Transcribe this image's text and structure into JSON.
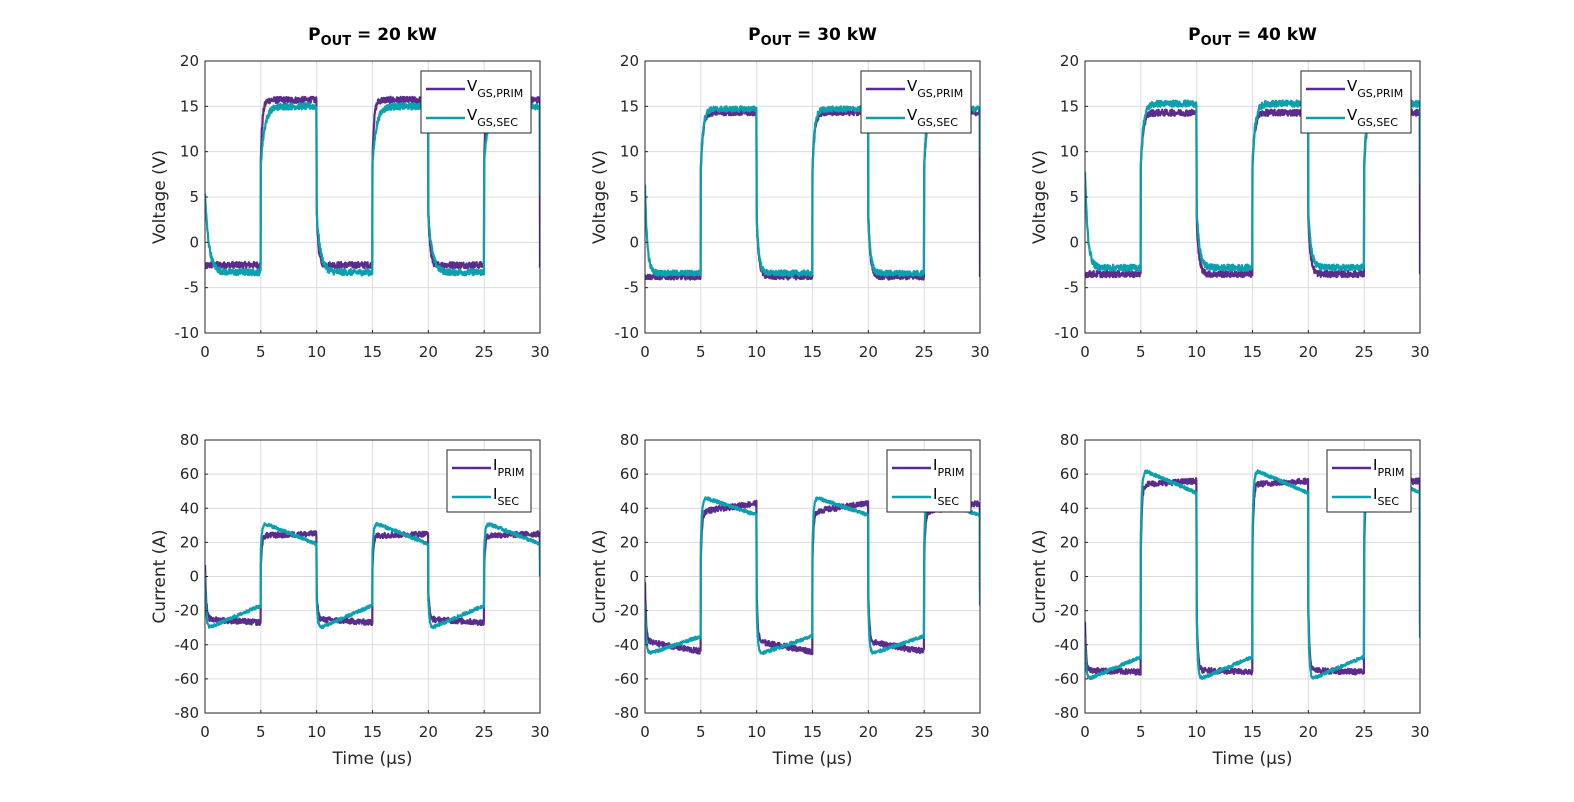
{
  "figure": {
    "colors": {
      "prim": "#5b2c8c",
      "sec": "#0aa0ad",
      "grid": "#dcdcdc",
      "axis": "#262626"
    }
  },
  "chart_data": [
    {
      "type": "line",
      "panel": "voltage-20kW",
      "title": {
        "main": "P",
        "sub": "OUT",
        "rest": " = 20 kW"
      },
      "xlabel": "",
      "ylabel": "Voltage (V)",
      "xlim": [
        0,
        30
      ],
      "ylim": [
        -10,
        20
      ],
      "xticks": [
        "0",
        "5",
        "10",
        "15",
        "20",
        "25",
        "30"
      ],
      "yticks": [
        "-10",
        "-5",
        "0",
        "5",
        "10",
        "15",
        "20"
      ],
      "grid": true,
      "legend_position": "top-right",
      "period_us": 10,
      "switch_times_us": [
        5,
        10,
        15,
        20,
        25
      ],
      "series": [
        {
          "name": "V",
          "name_sub": "GS,PRIM",
          "color_key": "prim",
          "high": [
            15.7,
            15.7
          ],
          "low": [
            -2.5,
            -2.5
          ],
          "start": -2.8,
          "end": -2.8,
          "noise": 0.35,
          "rise_tau": 0.15
        },
        {
          "name": "V",
          "name_sub": "GS,SEC",
          "color_key": "sec",
          "high": [
            15.0,
            15.0
          ],
          "low": [
            -3.3,
            -3.3
          ],
          "start": 5.5,
          "end": 5.2,
          "noise": 0.35,
          "rise_tau": 0.35
        }
      ]
    },
    {
      "type": "line",
      "panel": "voltage-30kW",
      "title": {
        "main": "P",
        "sub": "OUT",
        "rest": " = 30 kW"
      },
      "xlabel": "",
      "ylabel": "Voltage (V)",
      "xlim": [
        0,
        30
      ],
      "ylim": [
        -10,
        20
      ],
      "xticks": [
        "0",
        "5",
        "10",
        "15",
        "20",
        "25",
        "30"
      ],
      "yticks": [
        "-10",
        "-5",
        "0",
        "5",
        "10",
        "15",
        "20"
      ],
      "grid": true,
      "legend_position": "top-right",
      "period_us": 10,
      "switch_times_us": [
        5,
        10,
        15,
        20,
        25
      ],
      "series": [
        {
          "name": "V",
          "name_sub": "GS,PRIM",
          "color_key": "prim",
          "high": [
            14.3,
            14.3
          ],
          "low": [
            -3.8,
            -3.8
          ],
          "start": -3.8,
          "end": -3.8,
          "noise": 0.3,
          "rise_tau": 0.2
        },
        {
          "name": "V",
          "name_sub": "GS,SEC",
          "color_key": "sec",
          "high": [
            14.7,
            14.7
          ],
          "low": [
            -3.4,
            -3.4
          ],
          "start": 6.5,
          "end": 9.5,
          "noise": 0.3,
          "rise_tau": 0.2
        }
      ]
    },
    {
      "type": "line",
      "panel": "voltage-40kW",
      "title": {
        "main": "P",
        "sub": "OUT",
        "rest": " = 40 kW"
      },
      "xlabel": "",
      "ylabel": "Voltage (V)",
      "xlim": [
        0,
        30
      ],
      "ylim": [
        -10,
        20
      ],
      "xticks": [
        "0",
        "5",
        "10",
        "15",
        "20",
        "25",
        "30"
      ],
      "yticks": [
        "-10",
        "-5",
        "0",
        "5",
        "10",
        "15",
        "20"
      ],
      "grid": true,
      "legend_position": "top-right",
      "period_us": 10,
      "switch_times_us": [
        5,
        10,
        15,
        20,
        25
      ],
      "series": [
        {
          "name": "V",
          "name_sub": "GS,PRIM",
          "color_key": "prim",
          "high": [
            14.3,
            14.3
          ],
          "low": [
            -3.5,
            -3.5
          ],
          "start": -3.5,
          "end": -3.5,
          "noise": 0.35,
          "rise_tau": 0.2
        },
        {
          "name": "V",
          "name_sub": "GS,SEC",
          "color_key": "sec",
          "high": [
            15.3,
            15.3
          ],
          "low": [
            -2.8,
            -2.8
          ],
          "start": 8.0,
          "end": 6.5,
          "noise": 0.35,
          "rise_tau": 0.25
        }
      ]
    },
    {
      "type": "line",
      "panel": "current-20kW",
      "title": null,
      "xlabel": "Time (μs)",
      "ylabel": "Current (A)",
      "xlim": [
        0,
        30
      ],
      "ylim": [
        -80,
        80
      ],
      "xticks": [
        "0",
        "5",
        "10",
        "15",
        "20",
        "25",
        "30"
      ],
      "yticks": [
        "-80",
        "-60",
        "-40",
        "-20",
        "0",
        "20",
        "40",
        "60",
        "80"
      ],
      "grid": true,
      "legend_position": "top-right",
      "period_us": 10,
      "switch_times_us": [
        5,
        10,
        15,
        20,
        25
      ],
      "series": [
        {
          "name": "I",
          "name_sub": "PRIM",
          "color_key": "prim",
          "high": [
            24,
            25
          ],
          "low": [
            -25,
            -27
          ],
          "start": 9,
          "end": 10,
          "noise": 1.6,
          "rise_tau": 0.1
        },
        {
          "name": "I",
          "name_sub": "SEC",
          "color_key": "sec",
          "high": [
            32,
            19
          ],
          "low": [
            -31,
            -17
          ],
          "start": 2,
          "end": 0,
          "noise": 0.9,
          "rise_tau": 0.1
        }
      ]
    },
    {
      "type": "line",
      "panel": "current-30kW",
      "title": null,
      "xlabel": "Time (μs)",
      "ylabel": "Current (A)",
      "xlim": [
        0,
        30
      ],
      "ylim": [
        -80,
        80
      ],
      "xticks": [
        "0",
        "5",
        "10",
        "15",
        "20",
        "25",
        "30"
      ],
      "yticks": [
        "-80",
        "-60",
        "-40",
        "-20",
        "0",
        "20",
        "40",
        "60",
        "80"
      ],
      "grid": true,
      "legend_position": "top-right",
      "period_us": 10,
      "switch_times_us": [
        5,
        10,
        15,
        20,
        25
      ],
      "series": [
        {
          "name": "I",
          "name_sub": "PRIM",
          "color_key": "prim",
          "high": [
            38,
            43
          ],
          "low": [
            -38,
            -44
          ],
          "start": -4,
          "end": -8,
          "noise": 1.6,
          "rise_tau": 0.1
        },
        {
          "name": "I",
          "name_sub": "SEC",
          "color_key": "sec",
          "high": [
            47,
            36
          ],
          "low": [
            -46,
            -35
          ],
          "start": -15,
          "end": -17,
          "noise": 0.9,
          "rise_tau": 0.1
        }
      ]
    },
    {
      "type": "line",
      "panel": "current-40kW",
      "title": null,
      "xlabel": "Time (μs)",
      "ylabel": "Current (A)",
      "xlim": [
        0,
        30
      ],
      "ylim": [
        -80,
        80
      ],
      "xticks": [
        "0",
        "5",
        "10",
        "15",
        "20",
        "25",
        "30"
      ],
      "yticks": [
        "-80",
        "-60",
        "-40",
        "-20",
        "0",
        "20",
        "40",
        "60",
        "80"
      ],
      "grid": true,
      "legend_position": "top-right",
      "period_us": 10,
      "switch_times_us": [
        5,
        10,
        15,
        20,
        25
      ],
      "series": [
        {
          "name": "I",
          "name_sub": "PRIM",
          "color_key": "prim",
          "high": [
            54,
            56
          ],
          "low": [
            -55,
            -56
          ],
          "start": -26,
          "end": -28,
          "noise": 1.6,
          "rise_tau": 0.1
        },
        {
          "name": "I",
          "name_sub": "SEC",
          "color_key": "sec",
          "high": [
            63,
            49
          ],
          "low": [
            -61,
            -47
          ],
          "start": -36,
          "end": -36,
          "noise": 0.9,
          "rise_tau": 0.1
        }
      ]
    }
  ]
}
